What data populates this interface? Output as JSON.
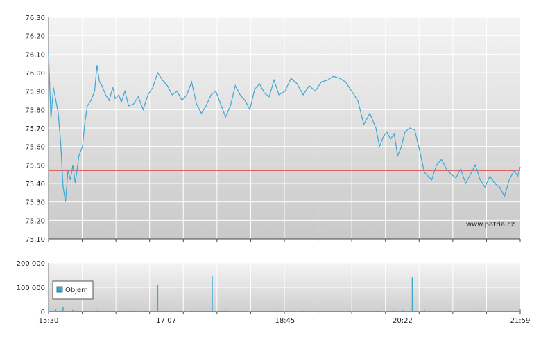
{
  "chart_data": [
    {
      "type": "line",
      "title": "",
      "xlabel": "",
      "ylabel": "",
      "ylim": [
        75.1,
        76.3
      ],
      "y_ticks": [
        "75.10",
        "75,20",
        "75,30",
        "75,40",
        "75,50",
        "75,60",
        "75,70",
        "75,80",
        "75,90",
        "76,00",
        "76,10",
        "76,20",
        "76,30"
      ],
      "x_ticks": [
        "15:30",
        "17:07",
        "18:45",
        "20:22",
        "21:59"
      ],
      "reference_line": {
        "value": 75.47,
        "color": "#e05050"
      },
      "grid": true,
      "watermark": "www.patria.cz",
      "series": [
        {
          "color": "#3ea6d4",
          "x": [
            "15:30",
            "15:32",
            "15:34",
            "15:36",
            "15:38",
            "15:40",
            "15:42",
            "15:44",
            "15:46",
            "15:48",
            "15:50",
            "15:52",
            "15:55",
            "15:58",
            "16:00",
            "16:02",
            "16:05",
            "16:08",
            "16:10",
            "16:12",
            "16:14",
            "16:17",
            "16:20",
            "16:23",
            "16:25",
            "16:28",
            "16:30",
            "16:33",
            "16:36",
            "16:40",
            "16:44",
            "16:48",
            "16:52",
            "16:56",
            "17:00",
            "17:04",
            "17:08",
            "17:12",
            "17:16",
            "17:20",
            "17:24",
            "17:28",
            "17:32",
            "17:36",
            "17:40",
            "17:44",
            "17:48",
            "17:52",
            "17:56",
            "18:00",
            "18:04",
            "18:08",
            "18:12",
            "18:16",
            "18:20",
            "18:24",
            "18:28",
            "18:32",
            "18:36",
            "18:40",
            "18:45",
            "18:50",
            "18:55",
            "19:00",
            "19:05",
            "19:10",
            "19:15",
            "19:20",
            "19:25",
            "19:30",
            "19:35",
            "19:40",
            "19:45",
            "19:50",
            "19:55",
            "20:00",
            "20:03",
            "20:06",
            "20:09",
            "20:12",
            "20:15",
            "20:18",
            "20:21",
            "20:24",
            "20:28",
            "20:32",
            "20:36",
            "20:40",
            "20:43",
            "20:46",
            "20:50",
            "20:54",
            "20:58",
            "21:02",
            "21:06",
            "21:10",
            "21:14",
            "21:18",
            "21:22",
            "21:26",
            "21:30",
            "21:34",
            "21:38",
            "21:42",
            "21:46",
            "21:50",
            "21:54",
            "21:57",
            "21:59"
          ],
          "values": [
            76.1,
            75.75,
            75.92,
            75.85,
            75.78,
            75.62,
            75.38,
            75.3,
            75.47,
            75.42,
            75.5,
            75.4,
            75.55,
            75.6,
            75.73,
            75.82,
            75.85,
            75.9,
            76.04,
            75.95,
            75.93,
            75.88,
            75.85,
            75.92,
            75.86,
            75.88,
            75.84,
            75.9,
            75.82,
            75.83,
            75.87,
            75.8,
            75.88,
            75.92,
            76.0,
            75.96,
            75.93,
            75.88,
            75.9,
            75.85,
            75.88,
            75.95,
            75.83,
            75.78,
            75.82,
            75.88,
            75.9,
            75.83,
            75.76,
            75.82,
            75.93,
            75.88,
            75.85,
            75.8,
            75.91,
            75.94,
            75.89,
            75.87,
            75.96,
            75.88,
            75.9,
            75.97,
            75.94,
            75.88,
            75.93,
            75.9,
            75.95,
            75.96,
            75.98,
            75.97,
            75.95,
            75.9,
            75.85,
            75.72,
            75.78,
            75.7,
            75.6,
            75.65,
            75.68,
            75.64,
            75.67,
            75.55,
            75.6,
            75.68,
            75.7,
            75.69,
            75.58,
            75.46,
            75.44,
            75.42,
            75.5,
            75.53,
            75.48,
            75.45,
            75.43,
            75.48,
            75.4,
            75.45,
            75.5,
            75.42,
            75.38,
            75.44,
            75.4,
            75.38,
            75.33,
            75.42,
            75.47,
            75.44,
            75.49
          ]
        }
      ]
    },
    {
      "type": "bar",
      "title": "",
      "xlabel": "",
      "ylabel": "",
      "ylim": [
        0,
        200000
      ],
      "y_ticks": [
        "0",
        "100 000",
        "200 000"
      ],
      "x_ticks": [
        "15:30",
        "17:07",
        "18:45",
        "20:22",
        "21:59"
      ],
      "grid": true,
      "legend": {
        "position": "left",
        "entries": [
          "Objem"
        ]
      },
      "series": [
        {
          "name": "Objem",
          "color": "#3ea6d4",
          "x": [
            "15:30",
            "15:36",
            "15:42",
            "15:50",
            "16:00",
            "16:10",
            "16:20",
            "16:30",
            "16:40",
            "16:50",
            "17:00",
            "17:07",
            "17:15",
            "17:25",
            "17:35",
            "17:45",
            "17:55",
            "18:05",
            "18:15",
            "18:25",
            "18:35",
            "18:45",
            "18:55",
            "19:05",
            "19:15",
            "19:25",
            "19:35",
            "19:45",
            "19:55",
            "20:05",
            "20:15",
            "20:22",
            "20:30",
            "20:40",
            "20:50",
            "21:00",
            "21:10",
            "21:20",
            "21:30",
            "21:40",
            "21:50",
            "21:59"
          ],
          "values": [
            12000,
            8000,
            20000,
            6000,
            5000,
            4000,
            3000,
            4000,
            4000,
            3000,
            112000,
            4000,
            3000,
            2000,
            5000,
            148000,
            4000,
            3000,
            2000,
            2000,
            4000,
            3000,
            2000,
            2000,
            3000,
            2000,
            2000,
            3000,
            2000,
            2000,
            4000,
            5000,
            142000,
            6000,
            3000,
            3000,
            2000,
            3000,
            2000,
            3000,
            2000,
            8000
          ]
        }
      ]
    }
  ]
}
